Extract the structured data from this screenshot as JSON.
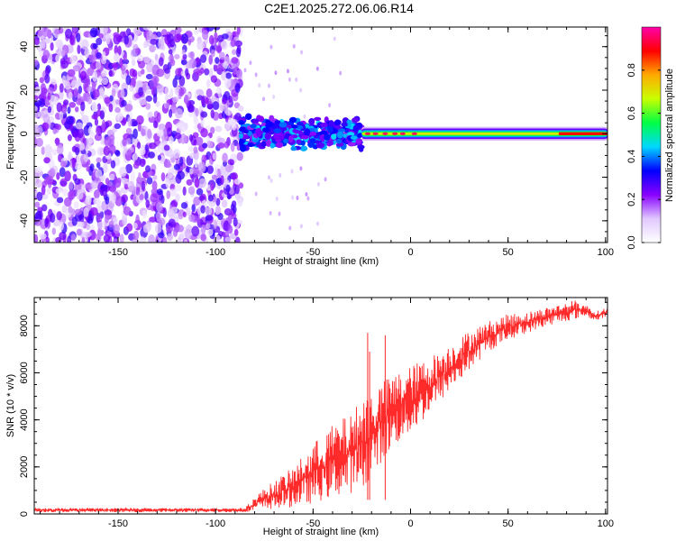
{
  "figure_title": "C2E1.2025.272.06.06.R14",
  "chart_data": [
    {
      "type": "heatmap",
      "title": "C2E1.2025.272.06.06.R14",
      "xlabel": "Height of straight line (km)",
      "ylabel": "Frequency (Hz)",
      "xlim": [
        -193,
        101
      ],
      "ylim": [
        -50,
        49
      ],
      "xticks": [
        -150,
        -100,
        -50,
        0,
        50,
        100
      ],
      "yticks": [
        -40,
        -20,
        0,
        20,
        40
      ],
      "xtick_labels": [
        "-150",
        "-100",
        "-50",
        "0",
        "50",
        "100"
      ],
      "ytick_labels": [
        "-40",
        "-20",
        "0",
        "20",
        "40"
      ],
      "regions": [
        {
          "name": "noise",
          "x_range": [
            -193,
            -87
          ],
          "y_range": [
            -50,
            49
          ],
          "amplitude_range": [
            0.05,
            0.3
          ]
        },
        {
          "name": "onset",
          "x_range": [
            -87,
            -25
          ],
          "y_range": [
            -8,
            8
          ],
          "amplitude_range": [
            0.2,
            0.45
          ]
        },
        {
          "name": "signal",
          "x_range": [
            -25,
            101
          ],
          "center_hz": 0,
          "halfwidth_hz": 3,
          "peak_amplitude": 1.0
        }
      ],
      "colorbar": {
        "label": "Normalized spectral amplitude",
        "min": 0.0,
        "max": 1.0,
        "ticks": [
          0.0,
          0.2,
          0.4,
          0.6,
          0.8
        ],
        "tick_labels": [
          "0.0",
          "0.2",
          "0.4",
          "0.6",
          "0.8"
        ],
        "colors": [
          "#ffffff",
          "#e0c8ff",
          "#8800ff",
          "#0000ff",
          "#00d8ff",
          "#00ff44",
          "#c8ff00",
          "#ffaa00",
          "#ff0000",
          "#ff00aa"
        ]
      }
    },
    {
      "type": "line",
      "xlabel": "Height of straight line (km)",
      "ylabel": "SNR (10 * v/v)",
      "xlim": [
        -193,
        101
      ],
      "ylim": [
        0,
        9200
      ],
      "xticks": [
        -150,
        -100,
        -50,
        0,
        50,
        100
      ],
      "yticks": [
        0,
        2000,
        4000,
        6000,
        8000
      ],
      "xtick_labels": [
        "-150",
        "-100",
        "-50",
        "0",
        "50",
        "100"
      ],
      "ytick_labels": [
        "0",
        "2000",
        "4000",
        "6000",
        "8000"
      ],
      "color": "#ff2a2a",
      "envelope": {
        "x": [
          -193,
          -85,
          -78,
          -70,
          -60,
          -50,
          -40,
          -30,
          -25,
          -20,
          -15,
          -10,
          -5,
          0,
          5,
          10,
          20,
          30,
          40,
          50,
          60,
          70,
          80,
          85,
          90,
          95,
          101
        ],
        "low": [
          80,
          80,
          150,
          200,
          300,
          450,
          700,
          900,
          1000,
          1600,
          2200,
          2700,
          3100,
          3400,
          3800,
          4300,
          5200,
          6100,
          6900,
          7400,
          7700,
          8000,
          8200,
          8300,
          8400,
          8200,
          8400
        ],
        "high": [
          250,
          250,
          900,
          1400,
          2000,
          3000,
          3800,
          4300,
          5000,
          5300,
          5600,
          5900,
          6100,
          6300,
          6500,
          6700,
          7200,
          7800,
          8200,
          8500,
          8600,
          8800,
          9000,
          9100,
          8900,
          8600,
          8800
        ]
      },
      "spikes": [
        {
          "x": -22,
          "y": 7700
        },
        {
          "x": -13,
          "y": 7600
        },
        {
          "x": -21,
          "y": 6900
        }
      ]
    }
  ]
}
